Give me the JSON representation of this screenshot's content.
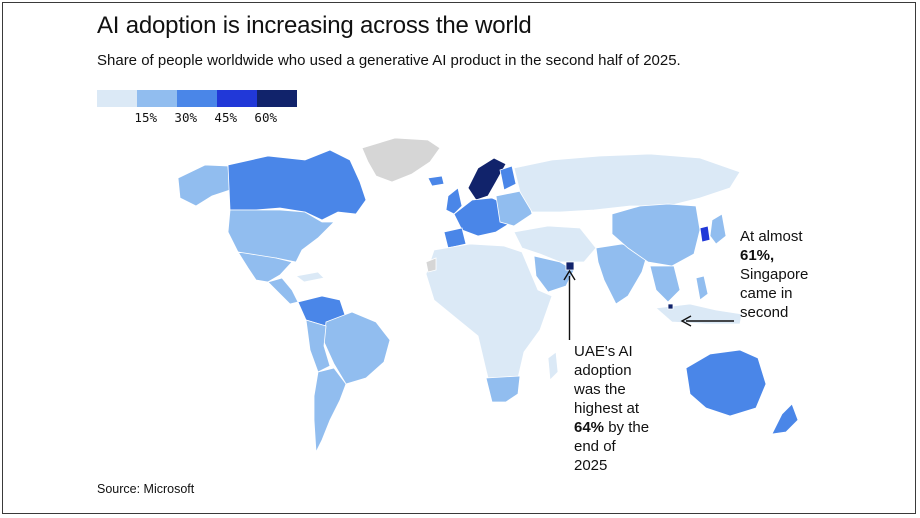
{
  "title": "AI adoption is increasing across the world",
  "subtitle": "Share of people worldwide who used a generative AI product in the second half of 2025.",
  "source": "Source: Microsoft",
  "legend": {
    "ticks": [
      "15%",
      "30%",
      "45%",
      "60%"
    ],
    "colors": [
      "#dbe9f6",
      "#91bdef",
      "#4a86e8",
      "#2138d8",
      "#11236b"
    ]
  },
  "annotations": {
    "singapore": {
      "line1": "At almost",
      "bold": "61%,",
      "line3": "Singapore",
      "line4": "came in",
      "line5": "second"
    },
    "uae": {
      "line1": "UAE's AI",
      "line2": "adoption",
      "line3": "was the",
      "line4": "highest at",
      "bold": "64%",
      "line5_rest": " by the",
      "line6": "end of",
      "line7": "2025"
    }
  },
  "colors": {
    "no_data": "#d6d6d6",
    "text": "#111111"
  }
}
